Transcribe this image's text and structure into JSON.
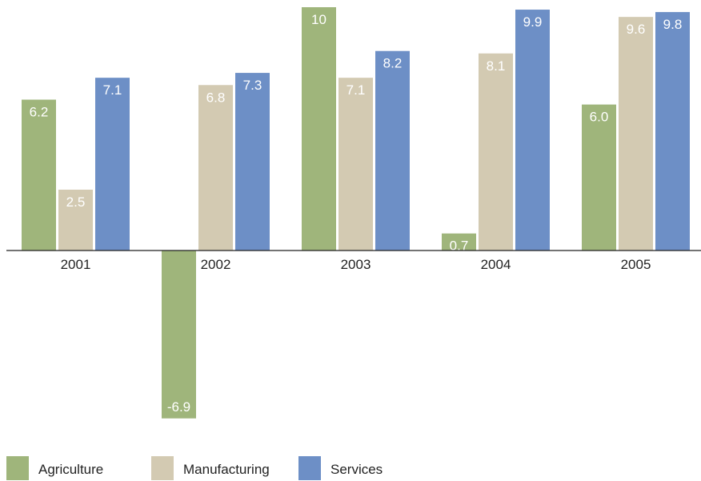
{
  "chart_data": {
    "type": "bar",
    "categories": [
      "2001",
      "2002",
      "2003",
      "2004",
      "2005"
    ],
    "series": [
      {
        "name": "Agriculture",
        "color": "#9fb57b",
        "values": [
          6.2,
          -6.9,
          10,
          0.7,
          6.0
        ],
        "labels": [
          "6.2",
          "-6.9",
          "10",
          "0.7",
          "6.0"
        ]
      },
      {
        "name": "Manufacturing",
        "color": "#d3cab2",
        "values": [
          2.5,
          6.8,
          7.1,
          8.1,
          9.6
        ],
        "labels": [
          "2.5",
          "6.8",
          "7.1",
          "8.1",
          "9.6"
        ]
      },
      {
        "name": "Services",
        "color": "#6d8fc6",
        "values": [
          7.1,
          7.3,
          8.2,
          9.9,
          9.8
        ],
        "labels": [
          "7.1",
          "7.3",
          "8.2",
          "9.9",
          "9.8"
        ]
      }
    ],
    "title": "",
    "xlabel": "",
    "ylabel": "",
    "ylim": [
      -6.9,
      10
    ],
    "grid": false,
    "legend": "bottom"
  }
}
